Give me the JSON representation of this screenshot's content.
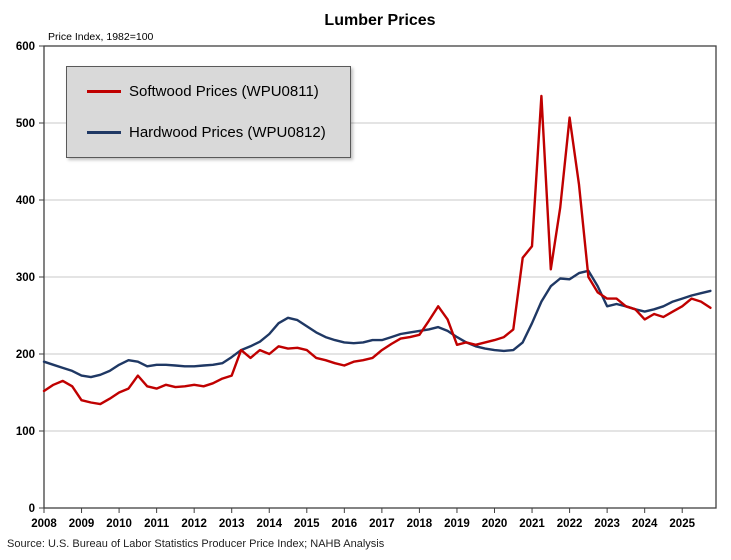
{
  "chart": {
    "title": "Lumber Prices",
    "y_axis_note": "Price Index, 1982=100",
    "source": "Source: U.S. Bureau of Labor Statistics Producer Price Index; NAHB Analysis"
  },
  "chart_data": {
    "type": "line",
    "title": "Lumber Prices",
    "ylabel": "Price Index, 1982=100",
    "xlabel": "",
    "ylim": [
      0,
      600
    ],
    "yticks": [
      0,
      100,
      200,
      300,
      400,
      500,
      600
    ],
    "xlim": [
      2008,
      2025.9
    ],
    "xticks": [
      2008,
      2009,
      2010,
      2011,
      2012,
      2013,
      2014,
      2015,
      2016,
      2017,
      2018,
      2019,
      2020,
      2021,
      2022,
      2023,
      2024,
      2025
    ],
    "grid": "horizontal",
    "legend_position": "top-left",
    "frame_color": "#404040",
    "grid_color": "#c9c9c9",
    "series": [
      {
        "name": "Softwood Prices (WPU0811)",
        "color": "#c00000",
        "x": [
          2008.0,
          2008.25,
          2008.5,
          2008.75,
          2009.0,
          2009.25,
          2009.5,
          2009.75,
          2010.0,
          2010.25,
          2010.5,
          2010.75,
          2011.0,
          2011.25,
          2011.5,
          2011.75,
          2012.0,
          2012.25,
          2012.5,
          2012.75,
          2013.0,
          2013.25,
          2013.5,
          2013.75,
          2014.0,
          2014.25,
          2014.5,
          2014.75,
          2015.0,
          2015.25,
          2015.5,
          2015.75,
          2016.0,
          2016.25,
          2016.5,
          2016.75,
          2017.0,
          2017.25,
          2017.5,
          2017.75,
          2018.0,
          2018.25,
          2018.5,
          2018.75,
          2019.0,
          2019.25,
          2019.5,
          2019.75,
          2020.0,
          2020.25,
          2020.5,
          2020.75,
          2021.0,
          2021.25,
          2021.5,
          2021.75,
          2022.0,
          2022.25,
          2022.5,
          2022.75,
          2023.0,
          2023.25,
          2023.5,
          2023.75,
          2024.0,
          2024.25,
          2024.5,
          2024.75,
          2025.0,
          2025.25,
          2025.5,
          2025.75
        ],
        "values": [
          152,
          160,
          165,
          158,
          140,
          137,
          135,
          142,
          150,
          155,
          172,
          158,
          155,
          160,
          157,
          158,
          160,
          158,
          162,
          168,
          172,
          205,
          195,
          205,
          200,
          210,
          207,
          208,
          205,
          195,
          192,
          188,
          185,
          190,
          192,
          195,
          205,
          213,
          220,
          222,
          225,
          243,
          262,
          245,
          212,
          215,
          212,
          215,
          218,
          222,
          232,
          325,
          340,
          535,
          310,
          390,
          507,
          420,
          300,
          280,
          272,
          272,
          262,
          258,
          245,
          252,
          248,
          255,
          262,
          272,
          268,
          260
        ]
      },
      {
        "name": "Hardwood Prices (WPU0812)",
        "color": "#1f3864",
        "x": [
          2008.0,
          2008.25,
          2008.5,
          2008.75,
          2009.0,
          2009.25,
          2009.5,
          2009.75,
          2010.0,
          2010.25,
          2010.5,
          2010.75,
          2011.0,
          2011.25,
          2011.5,
          2011.75,
          2012.0,
          2012.25,
          2012.5,
          2012.75,
          2013.0,
          2013.25,
          2013.5,
          2013.75,
          2014.0,
          2014.25,
          2014.5,
          2014.75,
          2015.0,
          2015.25,
          2015.5,
          2015.75,
          2016.0,
          2016.25,
          2016.5,
          2016.75,
          2017.0,
          2017.25,
          2017.5,
          2017.75,
          2018.0,
          2018.25,
          2018.5,
          2018.75,
          2019.0,
          2019.25,
          2019.5,
          2019.75,
          2020.0,
          2020.25,
          2020.5,
          2020.75,
          2021.0,
          2021.25,
          2021.5,
          2021.75,
          2022.0,
          2022.25,
          2022.5,
          2022.75,
          2023.0,
          2023.25,
          2023.5,
          2023.75,
          2024.0,
          2024.25,
          2024.5,
          2024.75,
          2025.0,
          2025.25,
          2025.5,
          2025.75
        ],
        "values": [
          190,
          186,
          182,
          178,
          172,
          170,
          173,
          178,
          186,
          192,
          190,
          184,
          186,
          186,
          185,
          184,
          184,
          185,
          186,
          188,
          196,
          205,
          210,
          216,
          226,
          240,
          247,
          244,
          236,
          228,
          222,
          218,
          215,
          214,
          215,
          218,
          218,
          222,
          226,
          228,
          230,
          232,
          235,
          230,
          222,
          215,
          210,
          207,
          205,
          204,
          205,
          215,
          240,
          268,
          288,
          298,
          297,
          305,
          308,
          288,
          262,
          265,
          262,
          258,
          255,
          258,
          262,
          268,
          272,
          276,
          279,
          282
        ]
      }
    ]
  }
}
